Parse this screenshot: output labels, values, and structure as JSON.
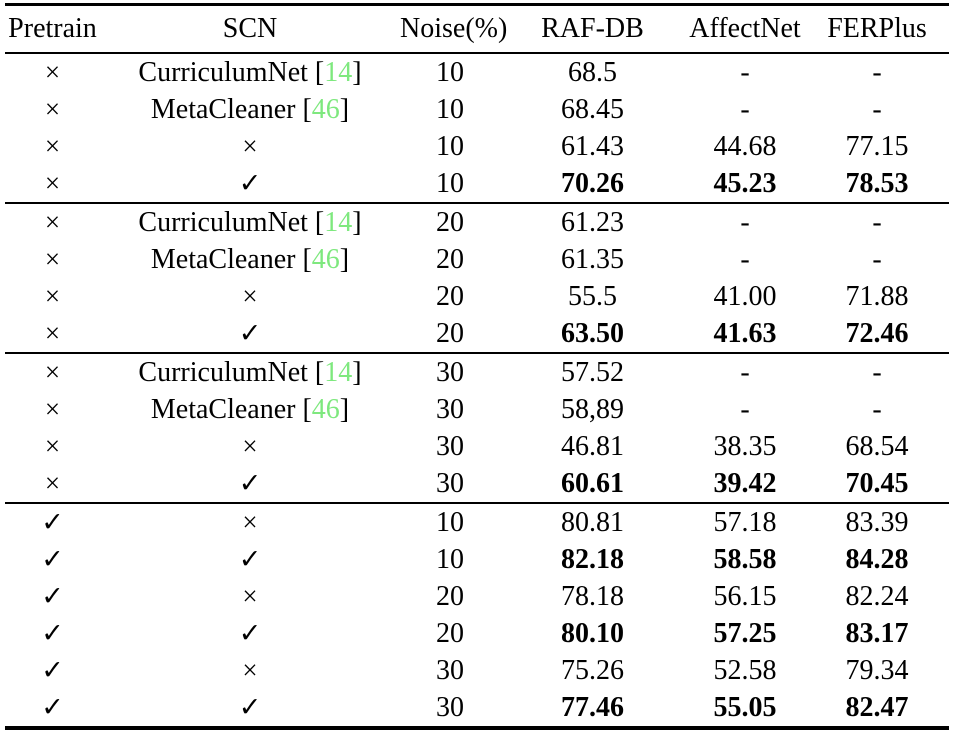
{
  "table": {
    "columns": [
      "Pretrain",
      "SCN",
      "Noise(%)",
      "RAF-DB",
      "AffectNet",
      "FERPlus"
    ],
    "symbols": {
      "cross": "×",
      "check": "✓"
    },
    "brackets": {
      "open": "[",
      "close": "]"
    },
    "colors": {
      "citation_green": "#7ee87e",
      "text": "#000000",
      "background": "#ffffff"
    },
    "groups": [
      {
        "rows": [
          {
            "pretrain": "cross",
            "scn": {
              "method": "CurriculumNet",
              "cite": "14"
            },
            "noise": "10",
            "values": [
              "68.5",
              "-",
              "-"
            ],
            "bold": false
          },
          {
            "pretrain": "cross",
            "scn": {
              "method": "MetaCleaner",
              "cite": "46"
            },
            "noise": "10",
            "values": [
              "68.45",
              "-",
              "-"
            ],
            "bold": false
          },
          {
            "pretrain": "cross",
            "scn": {
              "symbol": "cross"
            },
            "noise": "10",
            "values": [
              "61.43",
              "44.68",
              "77.15"
            ],
            "bold": false
          },
          {
            "pretrain": "cross",
            "scn": {
              "symbol": "check"
            },
            "noise": "10",
            "values": [
              "70.26",
              "45.23",
              "78.53"
            ],
            "bold": true
          }
        ]
      },
      {
        "rows": [
          {
            "pretrain": "cross",
            "scn": {
              "method": "CurriculumNet",
              "cite": "14"
            },
            "noise": "20",
            "values": [
              "61.23",
              "-",
              "-"
            ],
            "bold": false
          },
          {
            "pretrain": "cross",
            "scn": {
              "method": "MetaCleaner",
              "cite": "46"
            },
            "noise": "20",
            "values": [
              "61.35",
              "-",
              "-"
            ],
            "bold": false
          },
          {
            "pretrain": "cross",
            "scn": {
              "symbol": "cross"
            },
            "noise": "20",
            "values": [
              "55.5",
              "41.00",
              "71.88"
            ],
            "bold": false
          },
          {
            "pretrain": "cross",
            "scn": {
              "symbol": "check"
            },
            "noise": "20",
            "values": [
              "63.50",
              "41.63",
              "72.46"
            ],
            "bold": true
          }
        ]
      },
      {
        "rows": [
          {
            "pretrain": "cross",
            "scn": {
              "method": "CurriculumNet",
              "cite": "14"
            },
            "noise": "30",
            "values": [
              "57.52",
              "-",
              "-"
            ],
            "bold": false
          },
          {
            "pretrain": "cross",
            "scn": {
              "method": "MetaCleaner",
              "cite": "46"
            },
            "noise": "30",
            "values": [
              "58,89",
              "-",
              "-"
            ],
            "bold": false
          },
          {
            "pretrain": "cross",
            "scn": {
              "symbol": "cross"
            },
            "noise": "30",
            "values": [
              "46.81",
              "38.35",
              "68.54"
            ],
            "bold": false
          },
          {
            "pretrain": "cross",
            "scn": {
              "symbol": "check"
            },
            "noise": "30",
            "values": [
              "60.61",
              "39.42",
              "70.45"
            ],
            "bold": true
          }
        ]
      },
      {
        "rows": [
          {
            "pretrain": "check",
            "scn": {
              "symbol": "cross"
            },
            "noise": "10",
            "values": [
              "80.81",
              "57.18",
              "83.39"
            ],
            "bold": false
          },
          {
            "pretrain": "check",
            "scn": {
              "symbol": "check"
            },
            "noise": "10",
            "values": [
              "82.18",
              "58.58",
              "84.28"
            ],
            "bold": true
          },
          {
            "pretrain": "check",
            "scn": {
              "symbol": "cross"
            },
            "noise": "20",
            "values": [
              "78.18",
              "56.15",
              "82.24"
            ],
            "bold": false
          },
          {
            "pretrain": "check",
            "scn": {
              "symbol": "check"
            },
            "noise": "20",
            "values": [
              "80.10",
              "57.25",
              "83.17"
            ],
            "bold": true
          },
          {
            "pretrain": "check",
            "scn": {
              "symbol": "cross"
            },
            "noise": "30",
            "values": [
              "75.26",
              "52.58",
              "79.34"
            ],
            "bold": false
          },
          {
            "pretrain": "check",
            "scn": {
              "symbol": "check"
            },
            "noise": "30",
            "values": [
              "77.46",
              "55.05",
              "82.47"
            ],
            "bold": true
          }
        ]
      }
    ]
  }
}
